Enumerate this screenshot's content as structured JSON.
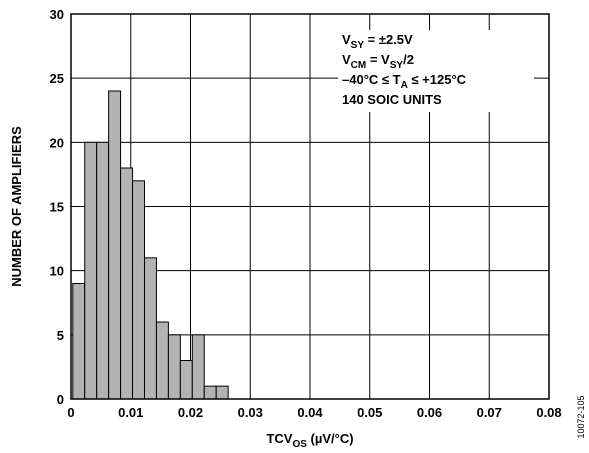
{
  "chart_data": {
    "type": "bar",
    "title": "",
    "xlabel": {
      "main": "TCV",
      "sub": "OS",
      "rest": " (µV/°C)"
    },
    "ylabel": "NUMBER OF AMPLIFIERS",
    "xlim": [
      0,
      0.08
    ],
    "ylim": [
      0,
      30
    ],
    "x_ticks": [
      "0",
      "0.01",
      "0.02",
      "0.03",
      "0.04",
      "0.05",
      "0.06",
      "0.07",
      "0.08"
    ],
    "y_ticks": [
      "0",
      "5",
      "10",
      "15",
      "20",
      "25",
      "30"
    ],
    "grid": true,
    "bin_width": 0.002,
    "bins": [
      {
        "x_start": 0.0003,
        "value": 9
      },
      {
        "x_start": 0.0023,
        "value": 20
      },
      {
        "x_start": 0.0043,
        "value": 20
      },
      {
        "x_start": 0.0063,
        "value": 24
      },
      {
        "x_start": 0.0083,
        "value": 18
      },
      {
        "x_start": 0.0103,
        "value": 17
      },
      {
        "x_start": 0.0123,
        "value": 11
      },
      {
        "x_start": 0.0143,
        "value": 6
      },
      {
        "x_start": 0.0163,
        "value": 5
      },
      {
        "x_start": 0.0183,
        "value": 3
      },
      {
        "x_start": 0.0203,
        "value": 5
      },
      {
        "x_start": 0.0223,
        "value": 1
      },
      {
        "x_start": 0.0243,
        "value": 1
      }
    ],
    "annotations": [
      {
        "main": "V",
        "sub": "SY",
        "rest": " = ±2.5V"
      },
      {
        "main": "V",
        "sub": "CM",
        "rest": " = V",
        "sub2": "SY",
        "rest2": "/2"
      },
      {
        "main": "–40°C ≤ T",
        "sub": "A",
        "rest": " ≤ +125°C"
      },
      {
        "main": "140 SOIC UNITS"
      }
    ],
    "colors": {
      "bar_fill": "#b3b3b3",
      "bar_stroke": "#000000",
      "grid": "#000000",
      "background": "#ffffff"
    }
  },
  "figure_code": "10072-105"
}
